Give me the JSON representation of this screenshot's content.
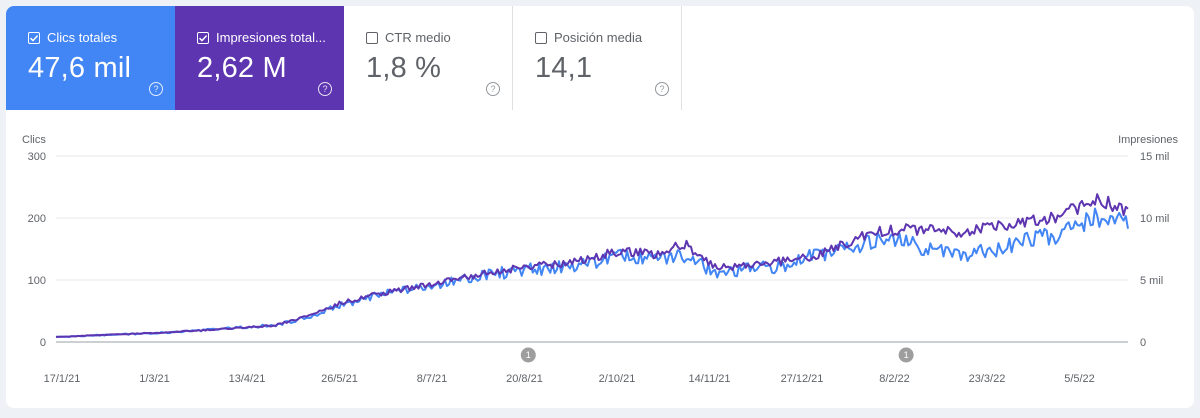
{
  "metrics": [
    {
      "label": "Clics totales",
      "value": "47,6 mil",
      "checked": true,
      "color": "#4285f4"
    },
    {
      "label": "Impresiones total...",
      "value": "2,62 M",
      "checked": true,
      "color": "#5e35b1"
    },
    {
      "label": "CTR medio",
      "value": "1,8 %",
      "checked": false
    },
    {
      "label": "Posición media",
      "value": "14,1",
      "checked": false
    }
  ],
  "help_icon": "?",
  "chart_data": {
    "type": "line",
    "left_axis": {
      "label": "Clics",
      "ticks": [
        "300",
        "200",
        "100",
        "0"
      ],
      "ylim": [
        0,
        300
      ]
    },
    "right_axis": {
      "label": "Impresiones",
      "ticks": [
        "15 mil",
        "10 mil",
        "5 mil",
        "0"
      ],
      "ylim": [
        0,
        15000
      ]
    },
    "x_ticks": [
      "17/1/21",
      "1/3/21",
      "13/4/21",
      "26/5/21",
      "8/7/21",
      "20/8/21",
      "2/10/21",
      "14/11/21",
      "27/12/21",
      "8/2/22",
      "23/3/22",
      "5/5/22"
    ],
    "x_range": [
      "2021-01-17",
      "2022-05-20"
    ],
    "annotations": [
      {
        "date": "2021-08-20",
        "label": "1"
      },
      {
        "date": "2022-02-08",
        "label": "1"
      }
    ],
    "grid": true,
    "series": [
      {
        "axis": "left",
        "color": "#4285f4",
        "points": [
          [
            "2021-01-17",
            8
          ],
          [
            "2021-01-31",
            10
          ],
          [
            "2021-02-14",
            12
          ],
          [
            "2021-03-01",
            14
          ],
          [
            "2021-03-15",
            17
          ],
          [
            "2021-03-29",
            20
          ],
          [
            "2021-04-13",
            24
          ],
          [
            "2021-04-27",
            27
          ],
          [
            "2021-05-10",
            38
          ],
          [
            "2021-05-26",
            58
          ],
          [
            "2021-06-09",
            72
          ],
          [
            "2021-06-23",
            82
          ],
          [
            "2021-07-08",
            92
          ],
          [
            "2021-07-22",
            100
          ],
          [
            "2021-08-05",
            110
          ],
          [
            "2021-08-20",
            116
          ],
          [
            "2021-09-03",
            120
          ],
          [
            "2021-09-17",
            128
          ],
          [
            "2021-10-02",
            138
          ],
          [
            "2021-10-16",
            132
          ],
          [
            "2021-10-30",
            140
          ],
          [
            "2021-11-14",
            110
          ],
          [
            "2021-11-28",
            118
          ],
          [
            "2021-12-12",
            122
          ],
          [
            "2021-12-27",
            138
          ],
          [
            "2022-01-10",
            150
          ],
          [
            "2022-01-24",
            165
          ],
          [
            "2022-02-08",
            160
          ],
          [
            "2022-02-22",
            148
          ],
          [
            "2022-03-08",
            140
          ],
          [
            "2022-03-23",
            150
          ],
          [
            "2022-04-06",
            168
          ],
          [
            "2022-04-20",
            175
          ],
          [
            "2022-05-05",
            205
          ],
          [
            "2022-05-20",
            188
          ]
        ]
      },
      {
        "axis": "right",
        "color": "#5e35b1",
        "points": [
          [
            "2021-01-17",
            400
          ],
          [
            "2021-01-31",
            500
          ],
          [
            "2021-02-14",
            620
          ],
          [
            "2021-03-01",
            720
          ],
          [
            "2021-03-15",
            840
          ],
          [
            "2021-03-29",
            1000
          ],
          [
            "2021-04-13",
            1180
          ],
          [
            "2021-04-27",
            1350
          ],
          [
            "2021-05-10",
            2000
          ],
          [
            "2021-05-26",
            3100
          ],
          [
            "2021-06-09",
            3750
          ],
          [
            "2021-06-23",
            4200
          ],
          [
            "2021-07-08",
            4700
          ],
          [
            "2021-07-22",
            5200
          ],
          [
            "2021-08-05",
            5700
          ],
          [
            "2021-08-20",
            6100
          ],
          [
            "2021-09-03",
            6300
          ],
          [
            "2021-09-17",
            6800
          ],
          [
            "2021-10-02",
            7400
          ],
          [
            "2021-10-16",
            7000
          ],
          [
            "2021-10-30",
            7900
          ],
          [
            "2021-11-14",
            6000
          ],
          [
            "2021-11-28",
            6200
          ],
          [
            "2021-12-12",
            6500
          ],
          [
            "2021-12-27",
            6800
          ],
          [
            "2022-01-10",
            7800
          ],
          [
            "2022-01-24",
            8900
          ],
          [
            "2022-02-08",
            9100
          ],
          [
            "2022-02-22",
            9000
          ],
          [
            "2022-03-08",
            8900
          ],
          [
            "2022-03-23",
            9400
          ],
          [
            "2022-04-06",
            9700
          ],
          [
            "2022-04-20",
            10200
          ],
          [
            "2022-05-05",
            11600
          ],
          [
            "2022-05-20",
            10500
          ]
        ]
      }
    ]
  }
}
